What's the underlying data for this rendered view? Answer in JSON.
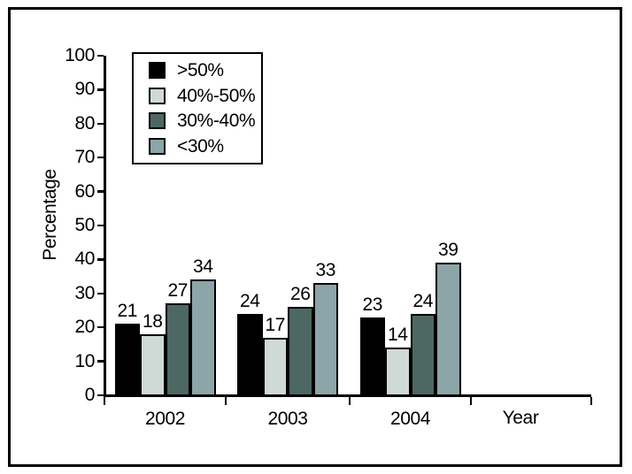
{
  "chart_data": {
    "type": "bar",
    "title": "",
    "xlabel": "Year",
    "ylabel": "Percentage",
    "ylim": [
      0,
      100
    ],
    "yticks": [
      0,
      10,
      20,
      30,
      40,
      50,
      60,
      70,
      80,
      90,
      100
    ],
    "categories": [
      "2002",
      "2003",
      "2004"
    ],
    "series": [
      {
        "name": ">50%",
        "color": "#000000",
        "values": [
          21,
          24,
          23
        ]
      },
      {
        "name": "40%-50%",
        "color": "#cfdad6",
        "values": [
          18,
          17,
          14
        ]
      },
      {
        "name": "30%-40%",
        "color": "#4d6862",
        "values": [
          27,
          26,
          24
        ]
      },
      {
        "name": "<30%",
        "color": "#8ca5a8",
        "values": [
          34,
          33,
          39
        ]
      }
    ],
    "value_labels": true,
    "grid": false,
    "legend_position": "top-left",
    "bar_outline_color": "#000000"
  }
}
